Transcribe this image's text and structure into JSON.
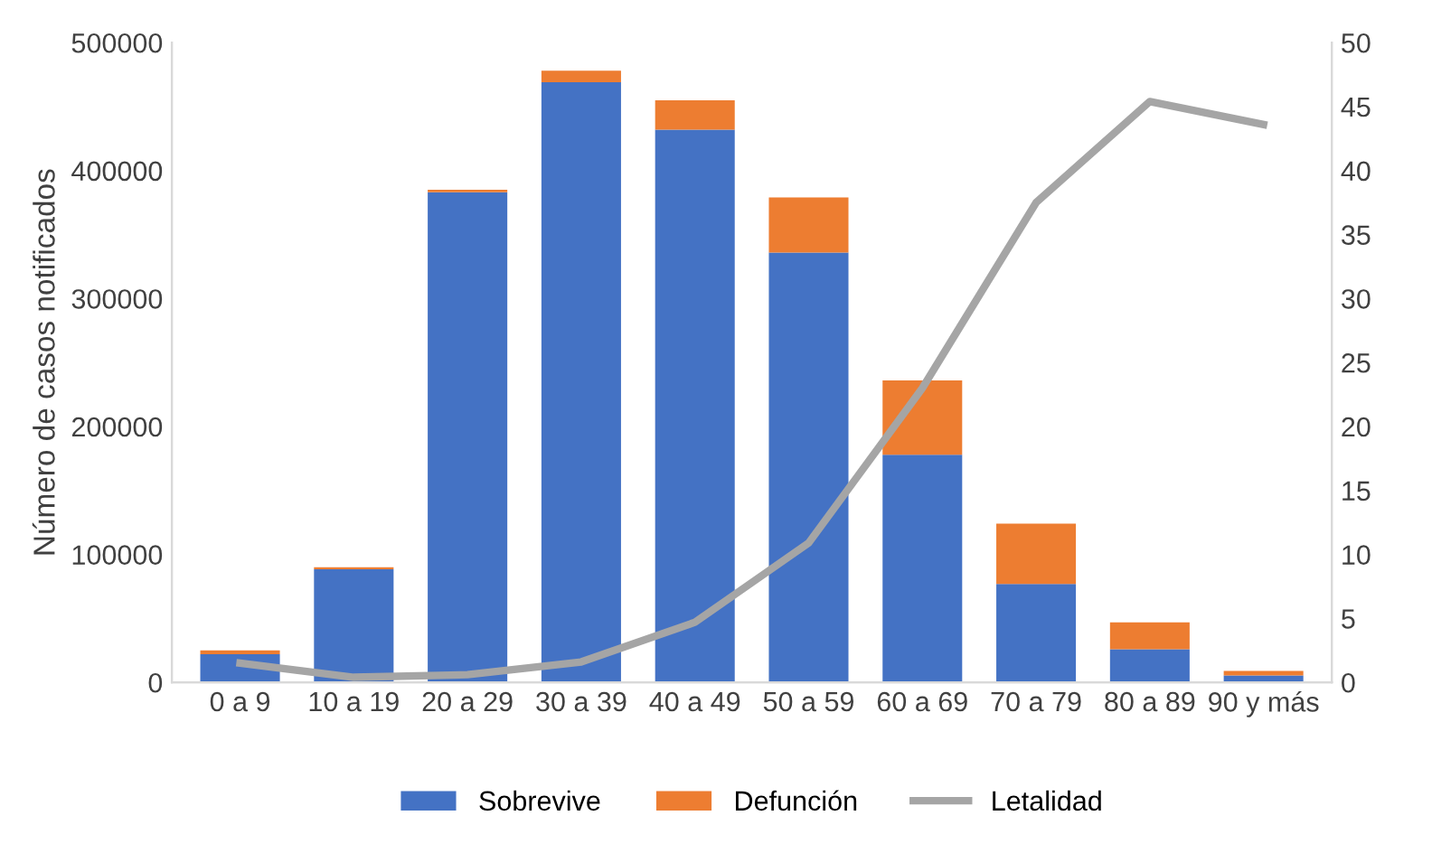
{
  "chart_data": {
    "type": "bar",
    "stacked": true,
    "ylabel": "Número de casos notificados",
    "categories": [
      "0 a 9",
      "10 a 19",
      "20 a 29",
      "30 a 39",
      "40 a 49",
      "50 a 59",
      "60 a 69",
      "70 a 79",
      "80 a 89",
      "90 y más"
    ],
    "series": [
      {
        "name": "Sobrevive",
        "color": "#4472c4",
        "values": [
          22000,
          88500,
          383000,
          469000,
          432000,
          336000,
          178000,
          77000,
          26000,
          5500
        ]
      },
      {
        "name": "Defunción",
        "color": "#ed7d31",
        "values": [
          3000,
          1500,
          2000,
          9000,
          23000,
          43000,
          58000,
          47000,
          21000,
          3500
        ]
      },
      {
        "name": "Letalidad",
        "type": "line",
        "axis": "y2",
        "color": "#a5a5a5",
        "values": [
          1.5,
          0.4,
          0.6,
          1.6,
          4.7,
          10.9,
          23,
          37.5,
          45.4,
          43.6
        ]
      }
    ],
    "ylim": [
      0,
      500000
    ],
    "yticks": [
      0,
      100000,
      200000,
      300000,
      400000,
      500000
    ],
    "y2lim": [
      0,
      50
    ],
    "y2ticks": [
      0,
      5,
      10,
      15,
      20,
      25,
      30,
      35,
      40,
      45,
      50
    ],
    "grid": false,
    "legend": "bottom"
  }
}
